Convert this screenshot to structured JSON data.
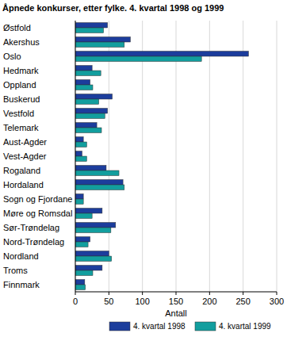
{
  "chart_data": {
    "type": "bar",
    "orientation": "horizontal",
    "title": "Åpnede konkurser, etter fylke. 4. kvartal 1998 og 1999",
    "x_label": "Antall",
    "categories": [
      "Østfold",
      "Akershus",
      "Oslo",
      "Hedmark",
      "Oppland",
      "Buskerud",
      "Vestfold",
      "Telemark",
      "Aust-Agder",
      "Vest-Agder",
      "Rogaland",
      "Hordaland",
      "Sogn og Fjordane",
      "Møre og Romsdal",
      "Sør-Trøndelag",
      "Nord-Trøndelag",
      "Nordland",
      "Troms",
      "Finnmark"
    ],
    "series": [
      {
        "name": "4. kvartal 1998",
        "color": "#1c3d9c",
        "values": [
          48,
          82,
          258,
          25,
          22,
          55,
          48,
          32,
          12,
          10,
          46,
          71,
          12,
          40,
          60,
          22,
          50,
          40,
          14
        ]
      },
      {
        "name": "4. kvartal 1999",
        "color": "#129e9e",
        "values": [
          42,
          73,
          188,
          38,
          26,
          35,
          44,
          39,
          17,
          17,
          65,
          73,
          12,
          25,
          53,
          19,
          54,
          26,
          15
        ]
      }
    ],
    "ylim": [
      0,
      300
    ],
    "yticks": [
      0,
      50,
      100,
      150,
      200,
      250,
      300
    ],
    "grid": true,
    "legend": "bottom"
  }
}
